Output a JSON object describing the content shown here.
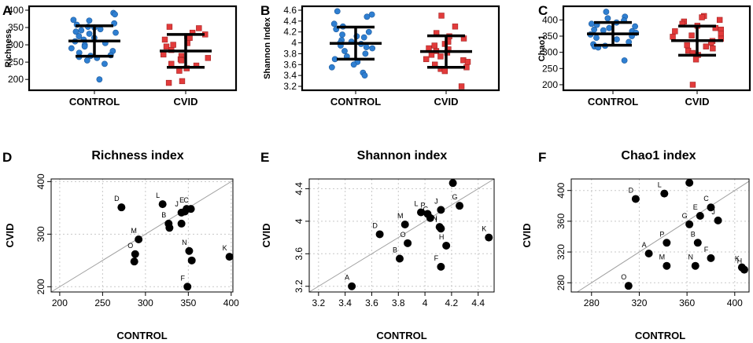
{
  "colors": {
    "control": "#2f7fd1",
    "cvid": "#e23b3b",
    "point": "#000000",
    "diagonal": "#a0a0a0",
    "grid": "#c8c8c8"
  },
  "chart_data": [
    {
      "panel": "A",
      "type": "scatter",
      "subtype": "strip",
      "title": "",
      "ylabel": "Richness",
      "categories": [
        "CONTROL",
        "CVID"
      ],
      "ylim": [
        180,
        400
      ],
      "yticks": [
        200,
        250,
        300,
        350,
        400
      ],
      "series": [
        {
          "name": "CONTROL",
          "marker": "circle",
          "values": [
            392,
            388,
            372,
            370,
            362,
            358,
            352,
            350,
            345,
            342,
            338,
            335,
            332,
            325,
            320,
            315,
            310,
            305,
            300,
            295,
            290,
            282,
            277,
            270,
            268,
            265,
            262,
            255,
            245,
            200
          ],
          "mean": 311,
          "sd_low": 267,
          "sd_high": 355
        },
        {
          "name": "CVID",
          "marker": "square",
          "values": [
            352,
            348,
            335,
            330,
            325,
            320,
            315,
            305,
            300,
            295,
            285,
            272,
            268,
            262,
            258,
            255,
            245,
            240,
            232,
            225,
            195,
            190
          ],
          "mean": 282,
          "sd_low": 235,
          "sd_high": 330
        }
      ]
    },
    {
      "panel": "B",
      "type": "scatter",
      "subtype": "strip",
      "title": "",
      "ylabel": "Shannon Index",
      "categories": [
        "CONTROL",
        "CVID"
      ],
      "ylim": [
        3.2,
        4.6
      ],
      "yticks": [
        3.2,
        3.4,
        3.6,
        3.8,
        4.0,
        4.2,
        4.4,
        4.6
      ],
      "series": [
        {
          "name": "CONTROL",
          "marker": "circle",
          "values": [
            4.58,
            4.52,
            4.48,
            4.35,
            4.3,
            4.25,
            4.2,
            4.15,
            4.12,
            4.1,
            4.05,
            4.02,
            4.0,
            3.98,
            3.95,
            3.92,
            3.9,
            3.85,
            3.8,
            3.75,
            3.7,
            3.65,
            3.6,
            3.55,
            3.45,
            3.4
          ],
          "mean": 3.99,
          "sd_low": 3.7,
          "sd_high": 4.29
        },
        {
          "name": "CVID",
          "marker": "square",
          "values": [
            4.5,
            4.3,
            4.18,
            4.12,
            4.08,
            4.02,
            3.98,
            3.95,
            3.9,
            3.88,
            3.85,
            3.82,
            3.78,
            3.75,
            3.7,
            3.68,
            3.65,
            3.6,
            3.55,
            3.52,
            3.48,
            3.2
          ],
          "mean": 3.84,
          "sd_low": 3.55,
          "sd_high": 4.13
        }
      ]
    },
    {
      "panel": "C",
      "type": "scatter",
      "subtype": "strip",
      "title": "",
      "ylabel": "Chao1",
      "categories": [
        "CONTROL",
        "CVID"
      ],
      "ylim": [
        195,
        430
      ],
      "yticks": [
        200,
        250,
        300,
        350,
        400
      ],
      "series": [
        {
          "name": "CONTROL",
          "marker": "circle",
          "values": [
            425,
            410,
            405,
            398,
            392,
            388,
            385,
            380,
            375,
            370,
            368,
            365,
            360,
            355,
            350,
            345,
            340,
            332,
            325,
            320,
            318,
            315,
            275
          ],
          "mean": 357,
          "sd_low": 322,
          "sd_high": 392
        },
        {
          "name": "CVID",
          "marker": "square",
          "values": [
            412,
            408,
            400,
            395,
            388,
            382,
            375,
            370,
            365,
            358,
            352,
            348,
            342,
            335,
            330,
            322,
            318,
            312,
            305,
            298,
            292,
            278,
            200
          ],
          "mean": 336,
          "sd_low": 291,
          "sd_high": 381
        }
      ]
    },
    {
      "panel": "D",
      "type": "scatter",
      "title": "Richness index",
      "xlabel": "CONTROL",
      "ylabel": "CVID",
      "xlim": [
        190,
        402
      ],
      "ylim": [
        190,
        405
      ],
      "xticks": [
        200,
        250,
        300,
        350,
        400
      ],
      "yticks": [
        200,
        300,
        400
      ],
      "points": [
        {
          "label": "D",
          "x": 272,
          "y": 351
        },
        {
          "label": "L",
          "x": 320,
          "y": 357
        },
        {
          "label": "E",
          "x": 348,
          "y": 348
        },
        {
          "label": "C",
          "x": 353,
          "y": 348
        },
        {
          "label": "J",
          "x": 342,
          "y": 341
        },
        {
          "label": "",
          "x": 346,
          "y": 343
        },
        {
          "label": "B",
          "x": 327,
          "y": 320
        },
        {
          "label": "",
          "x": 328,
          "y": 312
        },
        {
          "label": "",
          "x": 342,
          "y": 320
        },
        {
          "label": "M",
          "x": 292,
          "y": 290
        },
        {
          "label": "O",
          "x": 288,
          "y": 262
        },
        {
          "label": "",
          "x": 287,
          "y": 248
        },
        {
          "label": "N",
          "x": 351,
          "y": 268
        },
        {
          "label": "",
          "x": 354,
          "y": 250
        },
        {
          "label": "K",
          "x": 398,
          "y": 257
        },
        {
          "label": "F",
          "x": 349,
          "y": 200
        }
      ]
    },
    {
      "panel": "E",
      "type": "scatter",
      "title": "Shannon index",
      "xlabel": "CONTROL",
      "ylabel": "CVID",
      "xlim": [
        3.13,
        4.52
      ],
      "ylim": [
        3.13,
        4.52
      ],
      "xticks": [
        3.2,
        3.4,
        3.6,
        3.8,
        4.0,
        4.2,
        4.4
      ],
      "yticks": [
        3.2,
        3.6,
        4.0,
        4.4
      ],
      "points": [
        {
          "label": "A",
          "x": 3.45,
          "y": 3.2
        },
        {
          "label": "D",
          "x": 3.66,
          "y": 3.84
        },
        {
          "label": "B",
          "x": 3.81,
          "y": 3.54
        },
        {
          "label": "O",
          "x": 3.87,
          "y": 3.73
        },
        {
          "label": "M",
          "x": 3.85,
          "y": 3.96
        },
        {
          "label": "L",
          "x": 3.97,
          "y": 4.11
        },
        {
          "label": "P",
          "x": 4.02,
          "y": 4.09
        },
        {
          "label": "C",
          "x": 4.04,
          "y": 4.04
        },
        {
          "label": "J",
          "x": 4.12,
          "y": 4.14
        },
        {
          "label": "N",
          "x": 4.11,
          "y": 3.93
        },
        {
          "label": "I",
          "x": 4.12,
          "y": 3.91
        },
        {
          "label": "H",
          "x": 4.16,
          "y": 3.7
        },
        {
          "label": "F",
          "x": 4.12,
          "y": 3.44
        },
        {
          "label": "G",
          "x": 4.26,
          "y": 4.19
        },
        {
          "label": "",
          "x": 4.21,
          "y": 4.47
        },
        {
          "label": "K",
          "x": 4.48,
          "y": 3.8
        }
      ]
    },
    {
      "panel": "F",
      "type": "scatter",
      "title": "Chao1 index",
      "xlabel": "CONTROL",
      "ylabel": "CVID",
      "xlim": [
        263,
        412
      ],
      "ylim": [
        268,
        415
      ],
      "xticks": [
        280,
        320,
        360,
        400
      ],
      "yticks": [
        280,
        320,
        360,
        400
      ],
      "points": [
        {
          "label": "D",
          "x": 317,
          "y": 389
        },
        {
          "label": "L",
          "x": 341,
          "y": 396
        },
        {
          "label": "",
          "x": 362,
          "y": 410
        },
        {
          "label": "C",
          "x": 380,
          "y": 378
        },
        {
          "label": "E",
          "x": 371,
          "y": 367
        },
        {
          "label": "J",
          "x": 386,
          "y": 361
        },
        {
          "label": "G",
          "x": 362,
          "y": 356
        },
        {
          "label": "P",
          "x": 343,
          "y": 332
        },
        {
          "label": "B",
          "x": 369,
          "y": 332
        },
        {
          "label": "A",
          "x": 328,
          "y": 318
        },
        {
          "label": "F",
          "x": 380,
          "y": 312
        },
        {
          "label": "M",
          "x": 343,
          "y": 302
        },
        {
          "label": "N",
          "x": 367,
          "y": 302
        },
        {
          "label": "K",
          "x": 406,
          "y": 300
        },
        {
          "label": "H",
          "x": 408,
          "y": 297
        },
        {
          "label": "O",
          "x": 311,
          "y": 276
        }
      ]
    }
  ]
}
